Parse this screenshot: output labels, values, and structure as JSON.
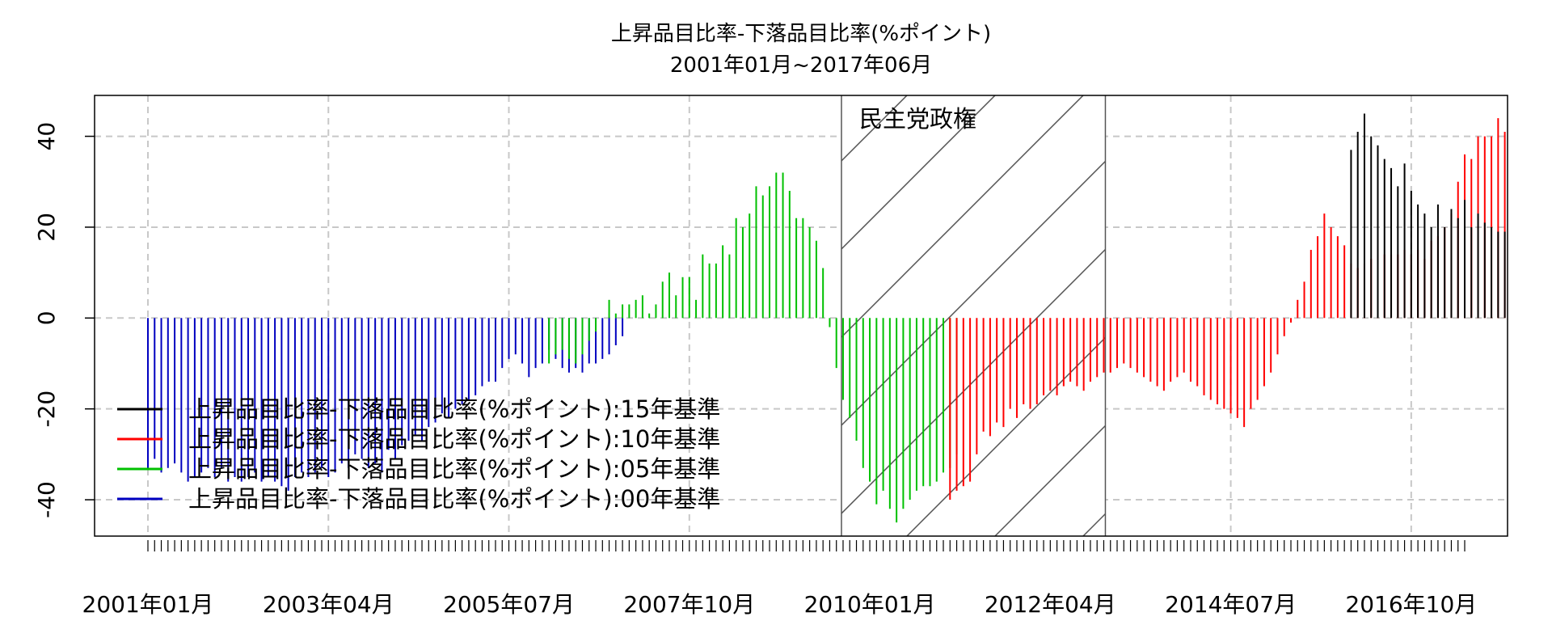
{
  "chart_data": {
    "type": "bar",
    "title": "上昇品目比率-下落品目比率(%ポイント)",
    "subtitle": "2001年01月~2017年06月",
    "xlabel": "",
    "ylabel": "",
    "ylim": [
      -48,
      49
    ],
    "yticks": [
      -40,
      -20,
      0,
      20,
      40
    ],
    "x_start": "2001-01",
    "x_end": "2017-06",
    "xtick_labels": [
      "2001年01月",
      "2003年04月",
      "2005年07月",
      "2007年10月",
      "2010年01月",
      "2012年04月",
      "2014年07月",
      "2016年10月"
    ],
    "grid": true,
    "legend_position": "bottom-left",
    "series": [
      {
        "name": "上昇品目比率-下落品目比率(%ポイント):15年基準",
        "color": "#000000",
        "start": "2016-01",
        "values": [
          37,
          41,
          45,
          40,
          38,
          35,
          33,
          29,
          34,
          28,
          25,
          23,
          20,
          25,
          20,
          24,
          22,
          26,
          20,
          23,
          21,
          20,
          19,
          19
        ]
      },
      {
        "name": "上昇品目比率-下落品目比率(%ポイント):10年基準",
        "color": "#ff0000",
        "start": "2011-01",
        "values": [
          -40,
          -38,
          -37,
          -36,
          -30,
          -25,
          -26,
          -23,
          -24,
          -20,
          -22,
          -19,
          -20,
          -19,
          -17,
          -16,
          -17,
          -15,
          -14,
          -15,
          -16,
          -14,
          -13,
          -12,
          -12,
          -11,
          -10,
          -11,
          -12,
          -13,
          -14,
          -15,
          -16,
          -14,
          -13,
          -12,
          -14,
          -15,
          -17,
          -18,
          -19,
          -20,
          -21,
          -22,
          -24,
          -20,
          -18,
          -15,
          -12,
          -8,
          -4,
          -1,
          4,
          8,
          15,
          18,
          23,
          20,
          18,
          16,
          12,
          11,
          12,
          13,
          14,
          14,
          14,
          14,
          15,
          14,
          15,
          13,
          17,
          18,
          20,
          23,
          30,
          36,
          35,
          40,
          40,
          40,
          44,
          41,
          40,
          42,
          43,
          42,
          40,
          39,
          40
        ]
      },
      {
        "name": "上昇品目比率-下落品目比率(%ポイント):05年基準",
        "color": "#00c000",
        "start": "2006-01",
        "values": [
          -10,
          -8,
          -7,
          -9,
          -10,
          -8,
          -5,
          -3,
          0,
          4,
          1,
          3,
          3,
          4,
          5,
          1,
          3,
          8,
          10,
          5,
          9,
          9,
          4,
          14,
          12,
          12,
          16,
          14,
          22,
          20,
          23,
          29,
          27,
          29,
          32,
          32,
          28,
          22,
          22,
          20,
          17,
          11,
          -2,
          -11,
          -18,
          -22,
          -27,
          -33,
          -36,
          -41,
          -38,
          -42,
          -45,
          -42,
          -40,
          -38,
          -37,
          -37,
          -36,
          -34,
          -33,
          -30
        ]
      },
      {
        "name": "上昇品目比率-下落品目比率(%ポイント):00年基準",
        "color": "#0000c0",
        "start": "2001-01",
        "values": [
          -33,
          -31,
          -34,
          -33,
          -32,
          -34,
          -36,
          -35,
          -34,
          -33,
          -35,
          -33,
          -36,
          -35,
          -36,
          -35,
          -34,
          -36,
          -35,
          -36,
          -37,
          -38,
          -35,
          -34,
          -35,
          -34,
          -33,
          -35,
          -34,
          -32,
          -33,
          -30,
          -31,
          -33,
          -32,
          -34,
          -29,
          -31,
          -28,
          -27,
          -26,
          -27,
          -24,
          -23,
          -21,
          -22,
          -20,
          -19,
          -18,
          -17,
          -15,
          -14,
          -14,
          -11,
          -9,
          -8,
          -10,
          -13,
          -11,
          -10,
          -7,
          -9,
          -11,
          -12,
          -11,
          -12,
          -10,
          -10,
          -9,
          -8,
          -6,
          -4
        ]
      }
    ],
    "annotations": [
      {
        "text": "民主党政権",
        "x_start": "2009-09",
        "x_end": "2012-12",
        "fill": "hatched"
      }
    ]
  }
}
